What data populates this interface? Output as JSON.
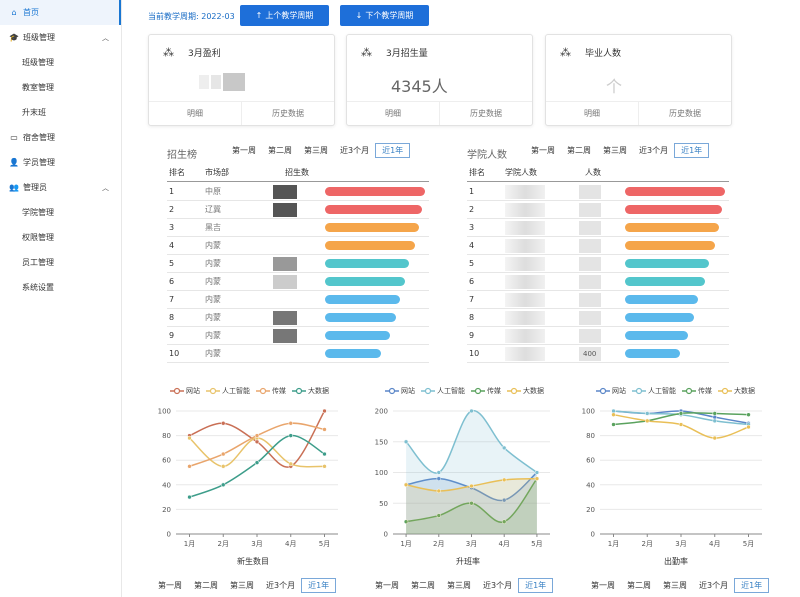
{
  "sidebar": {
    "items": [
      {
        "label": "首页",
        "icon": "home-icon",
        "glyph": "⌂",
        "active": true,
        "sub": false,
        "chev": false
      },
      {
        "label": "班级管理",
        "icon": "graduation-cap-icon",
        "glyph": "🎓",
        "active": false,
        "sub": false,
        "chev": true
      },
      {
        "label": "班级管理",
        "active": false,
        "sub": true
      },
      {
        "label": "教室管理",
        "active": false,
        "sub": true
      },
      {
        "label": "升末班",
        "active": false,
        "sub": true
      },
      {
        "label": "宿舍管理",
        "icon": "bed-icon",
        "glyph": "▭",
        "active": false,
        "sub": false,
        "chev": false
      },
      {
        "label": "学员管理",
        "icon": "user-icon",
        "glyph": "👤",
        "active": false,
        "sub": false,
        "chev": false
      },
      {
        "label": "管理员",
        "icon": "admin-icon",
        "glyph": "👥",
        "active": false,
        "sub": false,
        "chev": true
      },
      {
        "label": "学院管理",
        "active": false,
        "sub": true
      },
      {
        "label": "权限管理",
        "active": false,
        "sub": true
      },
      {
        "label": "员工管理",
        "active": false,
        "sub": true
      },
      {
        "label": "系统设置",
        "active": false,
        "sub": true
      }
    ]
  },
  "topbar": {
    "period_label": "当前教学周期: 2022-03",
    "prev_label": "上个教学周期",
    "next_label": "下个教学周期"
  },
  "cards": [
    {
      "title": "3月盈利",
      "value": "",
      "detail": "明细",
      "history": "历史数据"
    },
    {
      "title": "3月招生量",
      "value": "4345人",
      "detail": "明细",
      "history": "历史数据"
    },
    {
      "title": "毕业人数",
      "value": "个",
      "detail": "明细",
      "history": "历史数据"
    }
  ],
  "tabs": [
    "第一周",
    "第二周",
    "第三周",
    "近3个月",
    "近1年"
  ],
  "rank_left": {
    "title": "招生榜",
    "headers": [
      "排名",
      "市场部",
      "招生数"
    ],
    "rows": [
      {
        "rank": "1",
        "dept": "中原",
        "value": 100,
        "color": "#ee6666"
      },
      {
        "rank": "2",
        "dept": "辽冀",
        "value": 97,
        "color": "#ee6666"
      },
      {
        "rank": "3",
        "dept": "黑吉",
        "value": 94,
        "color": "#f5a54a"
      },
      {
        "rank": "4",
        "dept": "内蒙",
        "value": 90,
        "color": "#f5a54a"
      },
      {
        "rank": "5",
        "dept": "内蒙",
        "value": 84,
        "color": "#53c6cc"
      },
      {
        "rank": "6",
        "dept": "内蒙",
        "value": 80,
        "color": "#53c6cc"
      },
      {
        "rank": "7",
        "dept": "内蒙",
        "value": 75,
        "color": "#5bb9ec"
      },
      {
        "rank": "8",
        "dept": "内蒙",
        "value": 71,
        "color": "#5bb9ec"
      },
      {
        "rank": "9",
        "dept": "内蒙",
        "value": 65,
        "color": "#5bb9ec"
      },
      {
        "rank": "10",
        "dept": "内蒙",
        "value": 56,
        "color": "#5bb9ec"
      }
    ]
  },
  "rank_right": {
    "title": "学院人数",
    "headers": [
      "排名",
      "学院人数",
      "人数"
    ],
    "rows": [
      {
        "rank": "1",
        "value": 100,
        "num": "",
        "color": "#ee6666"
      },
      {
        "rank": "2",
        "value": 97,
        "num": "",
        "color": "#ee6666"
      },
      {
        "rank": "3",
        "value": 94,
        "num": "",
        "color": "#f5a54a"
      },
      {
        "rank": "4",
        "value": 90,
        "num": "",
        "color": "#f5a54a"
      },
      {
        "rank": "5",
        "value": 84,
        "num": "",
        "color": "#53c6cc"
      },
      {
        "rank": "6",
        "value": 80,
        "num": "",
        "color": "#53c6cc"
      },
      {
        "rank": "7",
        "value": 73,
        "num": "",
        "color": "#5bb9ec"
      },
      {
        "rank": "8",
        "value": 69,
        "num": "",
        "color": "#5bb9ec"
      },
      {
        "rank": "9",
        "value": 63,
        "num": "",
        "color": "#5bb9ec"
      },
      {
        "rank": "10",
        "value": 55,
        "num": "400",
        "color": "#5bb9ec"
      }
    ]
  },
  "chart_data": [
    {
      "type": "line",
      "title": "新生数目",
      "categories": [
        "1月",
        "2月",
        "3月",
        "4月",
        "5月"
      ],
      "ylim": [
        0,
        100
      ],
      "yticks": [
        0,
        20,
        40,
        60,
        80,
        100
      ],
      "area": false,
      "series": [
        {
          "name": "网站",
          "color": "#c96f55",
          "values": [
            80,
            90,
            75,
            55,
            100
          ]
        },
        {
          "name": "人工智能",
          "color": "#e8c36a",
          "values": [
            78,
            55,
            78,
            57,
            55
          ]
        },
        {
          "name": "传媒",
          "color": "#e9a56c",
          "values": [
            55,
            65,
            80,
            90,
            85
          ]
        },
        {
          "name": "大数据",
          "color": "#3d9d8a",
          "values": [
            30,
            40,
            58,
            80,
            65
          ]
        }
      ]
    },
    {
      "type": "area",
      "title": "升班率",
      "categories": [
        "1月",
        "2月",
        "3月",
        "4月",
        "5月"
      ],
      "ylim": [
        0,
        200
      ],
      "yticks": [
        0,
        50,
        100,
        150,
        200
      ],
      "area": true,
      "series": [
        {
          "name": "网站",
          "color": "#5a86c8",
          "values": [
            80,
            90,
            75,
            55,
            100
          ]
        },
        {
          "name": "人工智能",
          "color": "#7ebfd0",
          "values": [
            150,
            100,
            200,
            140,
            100
          ]
        },
        {
          "name": "传媒",
          "color": "#5aa25e",
          "values": [
            20,
            30,
            50,
            20,
            90
          ]
        },
        {
          "name": "大数据",
          "color": "#e9bf57",
          "values": [
            80,
            70,
            78,
            88,
            90
          ]
        }
      ]
    },
    {
      "type": "line",
      "title": "出勤率",
      "categories": [
        "1月",
        "2月",
        "3月",
        "4月",
        "5月"
      ],
      "ylim": [
        0,
        100
      ],
      "yticks": [
        0,
        20,
        40,
        60,
        80,
        100
      ],
      "area": false,
      "series": [
        {
          "name": "网站",
          "color": "#5a86c8",
          "values": [
            100,
            98,
            100,
            95,
            90
          ]
        },
        {
          "name": "人工智能",
          "color": "#7ebfd0",
          "values": [
            100,
            98,
            97,
            92,
            89
          ]
        },
        {
          "name": "传媒",
          "color": "#5aa25e",
          "values": [
            89,
            92,
            98,
            98,
            97
          ]
        },
        {
          "name": "大数据",
          "color": "#e9bf57",
          "values": [
            97,
            92,
            89,
            78,
            87
          ]
        }
      ]
    }
  ]
}
